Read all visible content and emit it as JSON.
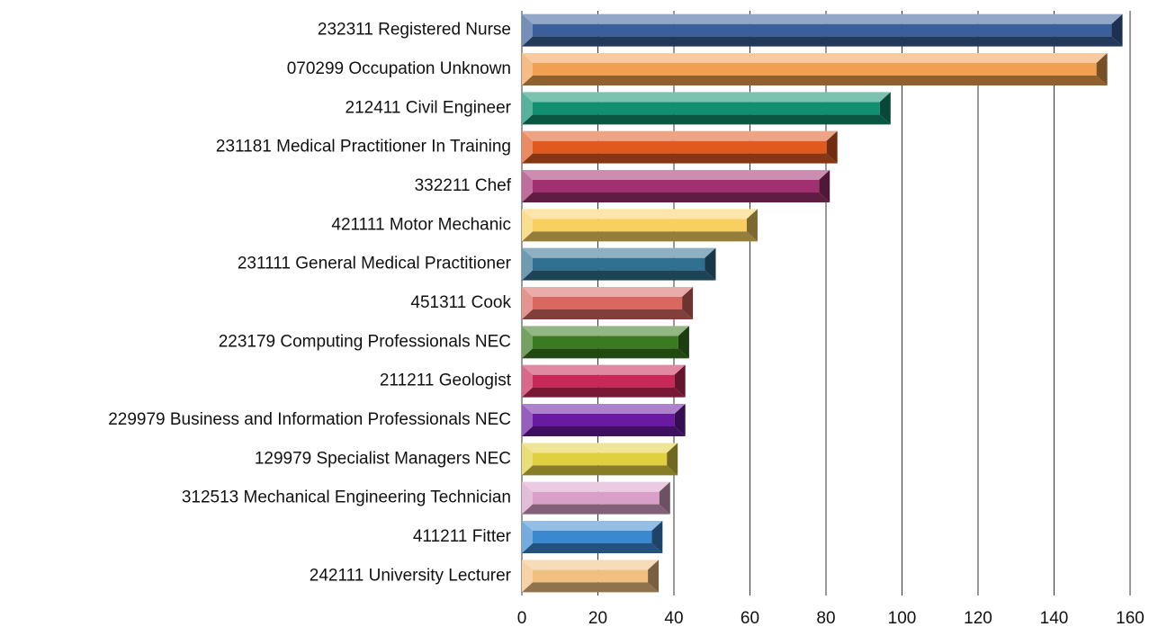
{
  "chart_data": {
    "type": "barh",
    "categories": [
      "232311 Registered Nurse",
      "070299 Occupation Unknown",
      "212411 Civil Engineer",
      "231181 Medical Practitioner In Training",
      "332211 Chef",
      "421111 Motor Mechanic",
      "231111 General Medical Practitioner",
      "451311 Cook",
      "223179 Computing Professionals NEC",
      "211211 Geologist",
      "229979 Business and Information Professionals NEC",
      "129979 Specialist Managers NEC",
      "312513 Mechanical Engineering Technician",
      "411211 Fitter",
      "242111 University Lecturer"
    ],
    "values": [
      158,
      154,
      97,
      83,
      81,
      62,
      51,
      45,
      44,
      43,
      43,
      41,
      39,
      37,
      36
    ],
    "colors": [
      "#3a5f9a",
      "#f0a050",
      "#109070",
      "#e05a20",
      "#a03070",
      "#f8d060",
      "#307090",
      "#d86860",
      "#3a7a20",
      "#c82858",
      "#6a1aa0",
      "#e0d040",
      "#d8a0c8",
      "#3a88d0",
      "#f0c080"
    ],
    "xlim": [
      0,
      160
    ],
    "xticks": [
      0,
      20,
      40,
      60,
      80,
      100,
      120,
      140,
      160
    ],
    "grid": true
  }
}
